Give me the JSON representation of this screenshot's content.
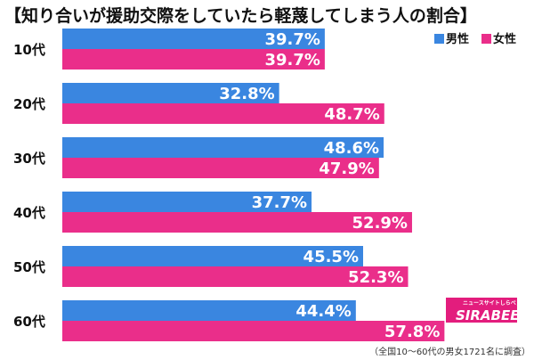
{
  "chart_data": {
    "type": "bar",
    "title": "【知り合いが援助交際をしていたら軽蔑してしまう人の割合】",
    "categories": [
      "10代",
      "20代",
      "30代",
      "40代",
      "50代",
      "60代"
    ],
    "series": [
      {
        "name": "男性",
        "values": [
          39.7,
          32.8,
          48.6,
          37.7,
          45.5,
          44.4
        ]
      },
      {
        "name": "女性",
        "values": [
          39.7,
          48.7,
          47.9,
          52.9,
          52.3,
          57.8
        ]
      }
    ],
    "value_suffix": "%",
    "orientation": "horizontal",
    "xlim": [
      0,
      70
    ],
    "grid": false,
    "legend_position": "top-right",
    "colors": {
      "男性": "#3a86e0",
      "女性": "#ea2e8a"
    },
    "footnote": "（全国10～60代の男女1721名に調査）"
  },
  "logo": {
    "small_text": "ニュースサイトしらべぇ",
    "main_text": "SIRABEE",
    "background": "#e31d7d"
  }
}
